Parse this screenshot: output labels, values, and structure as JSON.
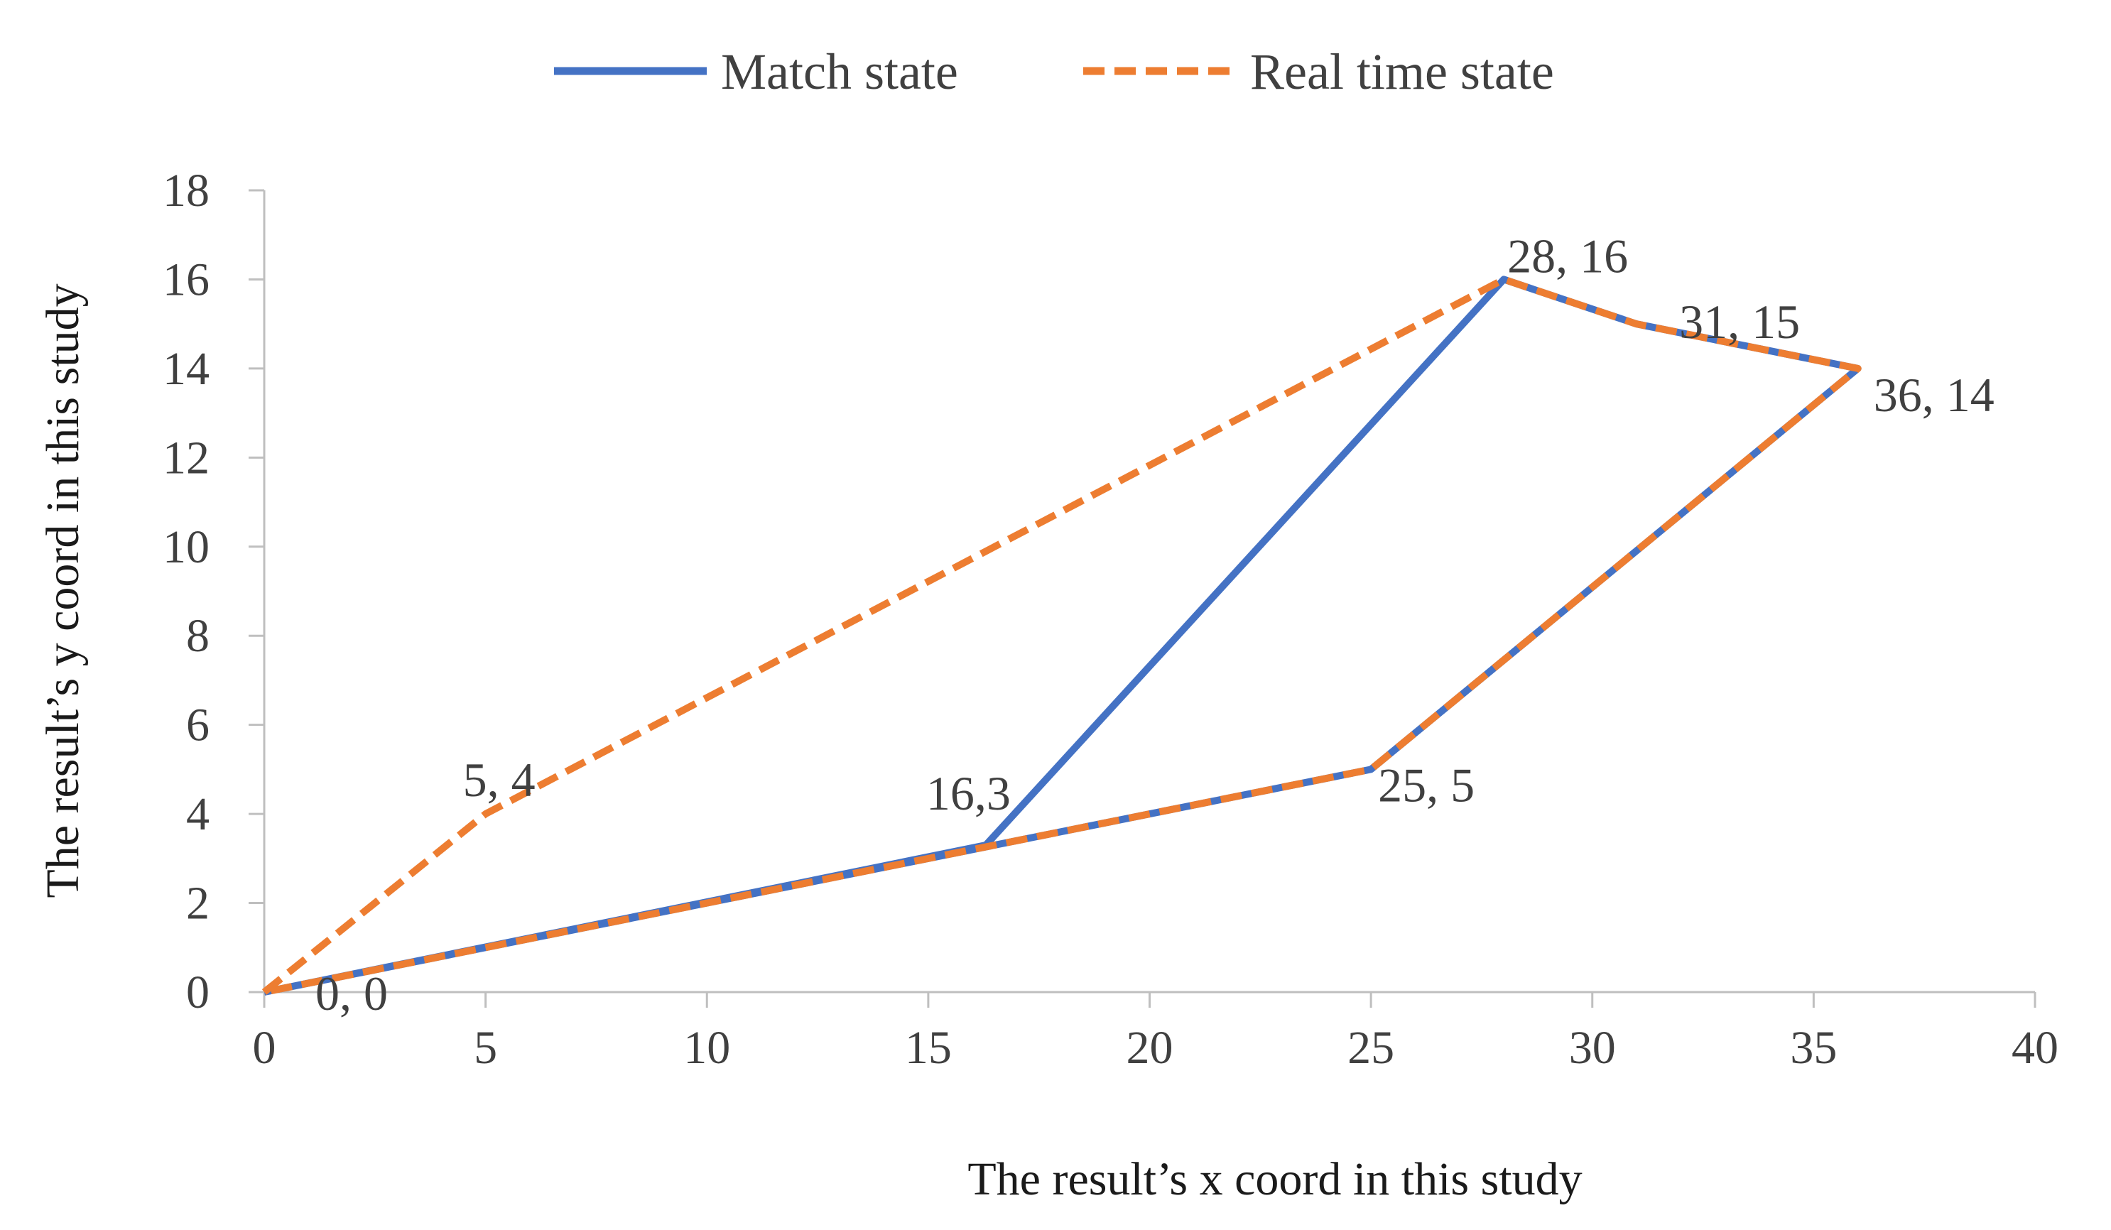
{
  "chart_data": {
    "type": "line",
    "title": "",
    "xlabel": "The result’s x coord in this study",
    "ylabel": "The result’s y coord in this study",
    "xlim": [
      0,
      40
    ],
    "ylim": [
      0,
      18
    ],
    "xticks": [
      0,
      5,
      10,
      15,
      20,
      25,
      30,
      35,
      40
    ],
    "yticks": [
      0,
      2,
      4,
      6,
      8,
      10,
      12,
      14,
      16,
      18
    ],
    "grid": false,
    "legend_position": "top-center",
    "series": [
      {
        "name": "Match state",
        "color": "#4472C4",
        "style": "solid",
        "points": [
          [
            0,
            0
          ],
          [
            16.3,
            3.3
          ],
          [
            28,
            16
          ],
          [
            31,
            15
          ],
          [
            36,
            14
          ],
          [
            25,
            5
          ],
          [
            0,
            0
          ]
        ]
      },
      {
        "name": "Real time state",
        "color": "#ED7D31",
        "style": "dashed",
        "points": [
          [
            0,
            0
          ],
          [
            5,
            4
          ],
          [
            28,
            16
          ],
          [
            31,
            15
          ],
          [
            36,
            14
          ],
          [
            25,
            5
          ],
          [
            0,
            0
          ]
        ]
      }
    ],
    "annotations": [
      {
        "text": "0, 0",
        "x": 0,
        "y": 0,
        "anchor": "below-right"
      },
      {
        "text": "5, 4",
        "x": 5,
        "y": 4,
        "anchor": "above-left"
      },
      {
        "text": "16,3",
        "x": 16.3,
        "y": 3.3,
        "anchor": "above-left"
      },
      {
        "text": "25, 5",
        "x": 25,
        "y": 5,
        "anchor": "below-right"
      },
      {
        "text": "28, 16",
        "x": 28,
        "y": 16,
        "anchor": "above-right"
      },
      {
        "text": "31, 15",
        "x": 31,
        "y": 15,
        "anchor": "above-right"
      },
      {
        "text": "36, 14",
        "x": 36,
        "y": 14,
        "anchor": "below-right"
      }
    ]
  }
}
